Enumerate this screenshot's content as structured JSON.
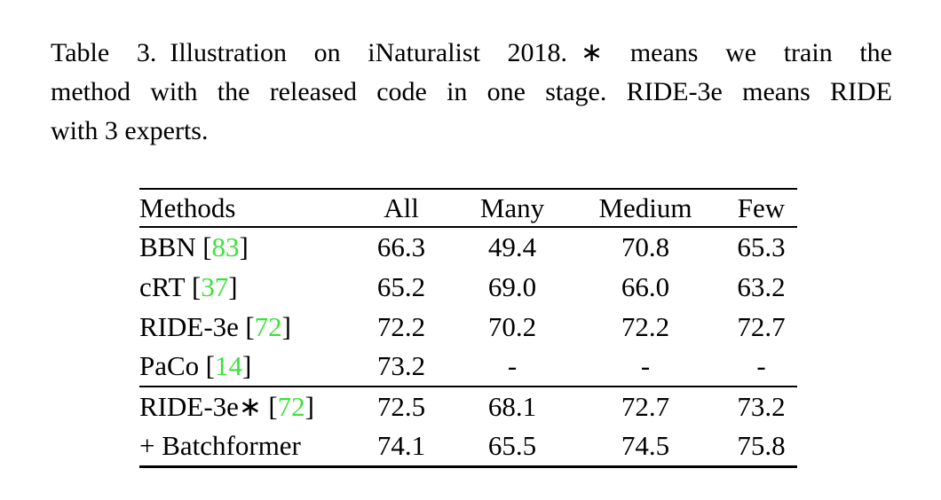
{
  "page": {
    "background": "#ffffff",
    "text_color": "#000000",
    "citation_color": "#3ae23a"
  },
  "caption": {
    "label": "Table 3.",
    "lines": [
      "Table 3. Illustration on iNaturalist 2018. ∗ means we train the",
      "method with the released code in one stage. RIDE-3e means RIDE",
      "with 3 experts."
    ]
  },
  "table": {
    "headers": [
      "Methods",
      "All",
      "Many",
      "Medium",
      "Few"
    ],
    "rows": [
      {
        "name": "BBN",
        "open": "[",
        "cite": "83",
        "close": "]",
        "all": "66.3",
        "many": "49.4",
        "medium": "70.8",
        "few": "65.3"
      },
      {
        "name": "cRT",
        "open": "[",
        "cite": "37",
        "close": "]",
        "all": "65.2",
        "many": "69.0",
        "medium": "66.0",
        "few": "63.2"
      },
      {
        "name": "RIDE-3e",
        "open": "[",
        "cite": "72",
        "close": "]",
        "all": "72.2",
        "many": "70.2",
        "medium": "72.2",
        "few": "72.7"
      },
      {
        "name": "PaCo",
        "open": "[",
        "cite": "14",
        "close": "]",
        "all": "73.2",
        "many": "-",
        "medium": "-",
        "few": "-"
      },
      {
        "name": "RIDE-3e∗",
        "open": "[",
        "cite": "72",
        "close": "]",
        "all": "72.5",
        "many": "68.1",
        "medium": "72.7",
        "few": "73.2"
      },
      {
        "name": "+ Batchformer",
        "open": "",
        "cite": "",
        "close": "",
        "all": "74.1",
        "many": "65.5",
        "medium": "74.5",
        "few": "75.8"
      }
    ]
  }
}
